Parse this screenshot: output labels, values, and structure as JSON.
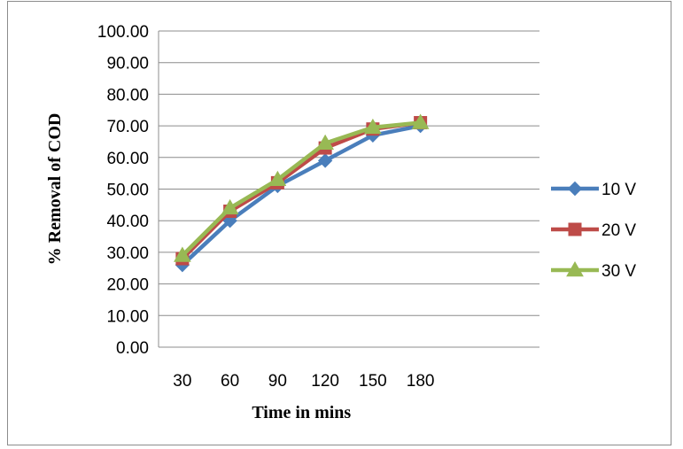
{
  "chart_data": {
    "type": "line",
    "title": "",
    "xlabel": "Time in mins",
    "ylabel": "%  Removal of COD",
    "x": [
      "30",
      "60",
      "90",
      "120",
      "150",
      "180"
    ],
    "ylim": [
      0,
      100
    ],
    "yticks": [
      "0.00",
      "10.00",
      "20.00",
      "30.00",
      "40.00",
      "50.00",
      "60.00",
      "70.00",
      "80.00",
      "90.00",
      "100.00"
    ],
    "grid": "horizontal",
    "legend": "right",
    "series": [
      {
        "name": "10 V",
        "values": [
          26,
          40,
          51,
          59,
          67,
          70
        ],
        "color": "#4a7ebb",
        "marker": "diamond"
      },
      {
        "name": "20 V",
        "values": [
          28,
          43,
          52,
          63,
          69,
          71
        ],
        "color": "#be4b48",
        "marker": "square"
      },
      {
        "name": "30 V",
        "values": [
          29,
          44,
          53,
          64.5,
          69.5,
          71
        ],
        "color": "#98b954",
        "marker": "triangle"
      }
    ]
  }
}
